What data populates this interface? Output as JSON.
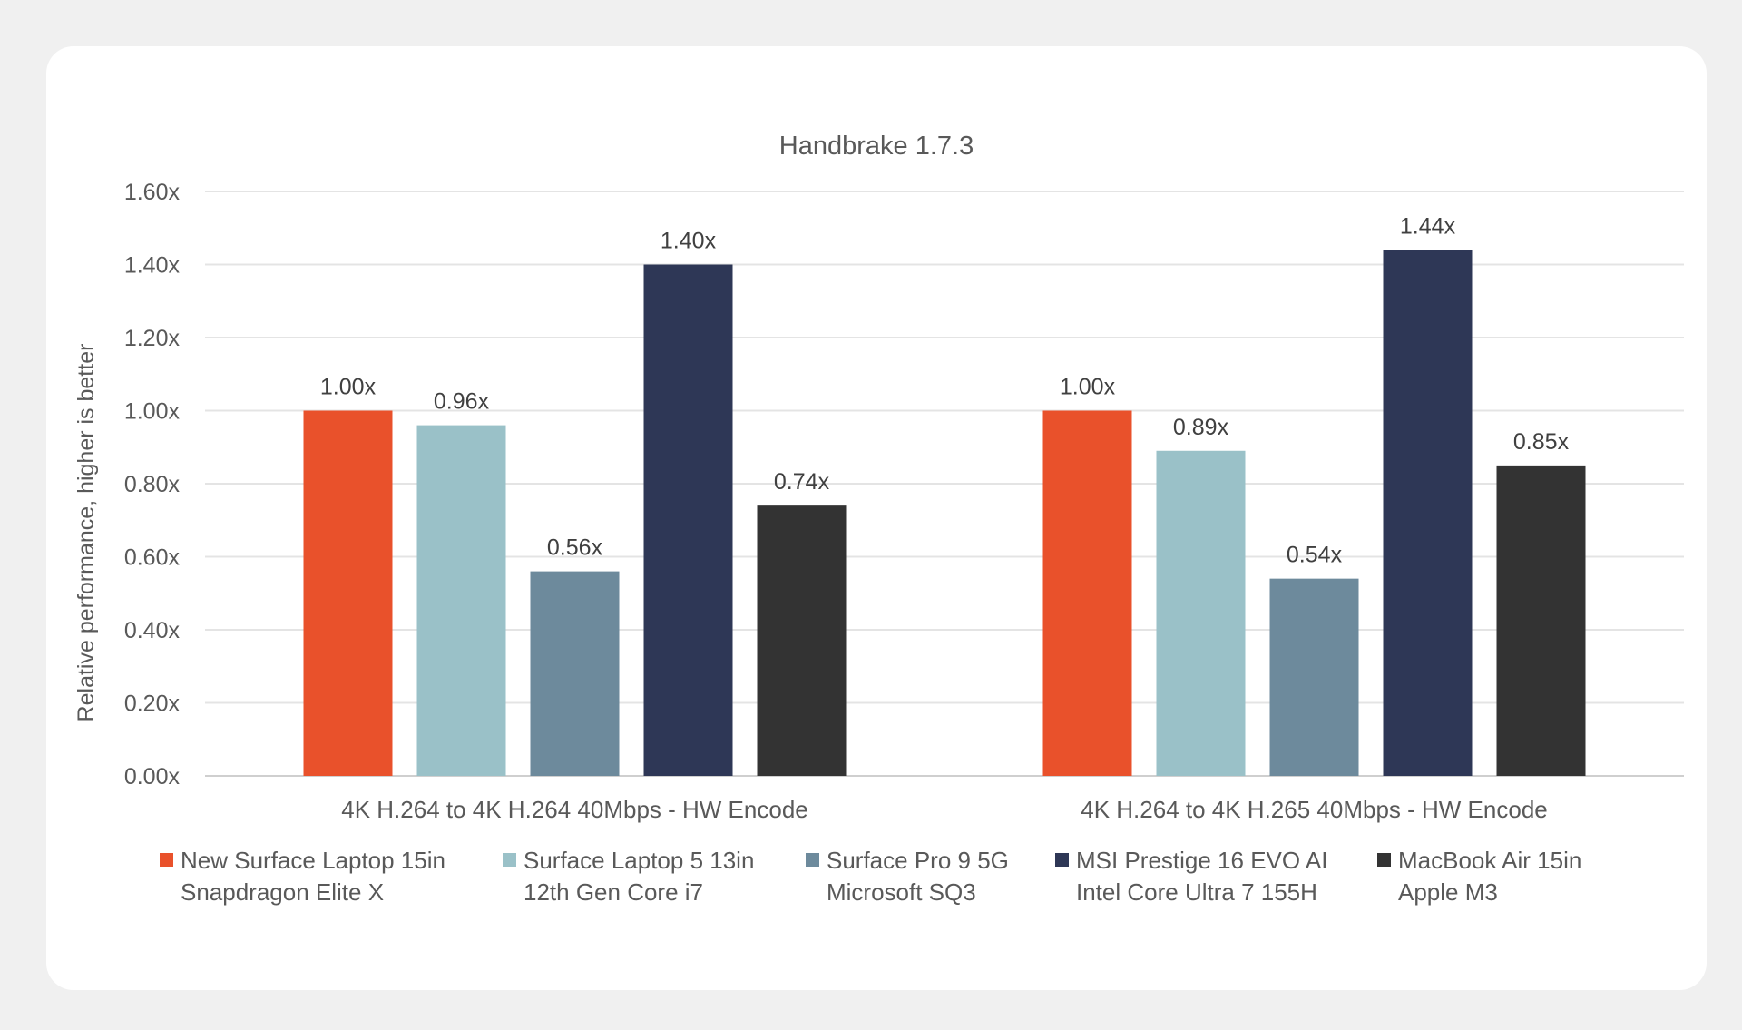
{
  "chart_data": {
    "type": "bar",
    "title": "Handbrake 1.7.3",
    "ylabel": "Relative performance, higher is better",
    "xlabel": "",
    "ylim": [
      0,
      1.6
    ],
    "yticks": [
      "0.00x",
      "0.20x",
      "0.40x",
      "0.60x",
      "0.80x",
      "1.00x",
      "1.20x",
      "1.40x",
      "1.60x"
    ],
    "grid": true,
    "legend_position": "bottom",
    "categories": [
      "4K H.264 to 4K H.264 40Mbps - HW Encode",
      "4K H.264 to 4K H.265 40Mbps - HW Encode"
    ],
    "series": [
      {
        "name": "New Surface Laptop 15in",
        "name2": "Snapdragon Elite X",
        "color": "#e9512b",
        "values": [
          1.0,
          1.0
        ],
        "labels": [
          "1.00x",
          "1.00x"
        ]
      },
      {
        "name": "Surface Laptop 5 13in",
        "name2": "12th Gen Core i7",
        "color": "#9ac1c8",
        "values": [
          0.96,
          0.89
        ],
        "labels": [
          "0.96x",
          "0.89x"
        ]
      },
      {
        "name": "Surface Pro 9 5G",
        "name2": "Microsoft SQ3",
        "color": "#6d8a9c",
        "values": [
          0.56,
          0.54
        ],
        "labels": [
          "0.56x",
          "0.54x"
        ]
      },
      {
        "name": "MSI Prestige 16 EVO AI",
        "name2": "Intel Core Ultra 7 155H",
        "color": "#2e3756",
        "values": [
          1.4,
          1.44
        ],
        "labels": [
          "1.40x",
          "1.44x"
        ]
      },
      {
        "name": "MacBook Air 15in",
        "name2": "Apple M3",
        "color": "#333333",
        "values": [
          0.74,
          0.85
        ],
        "labels": [
          "0.74x",
          "0.85x"
        ]
      }
    ]
  }
}
